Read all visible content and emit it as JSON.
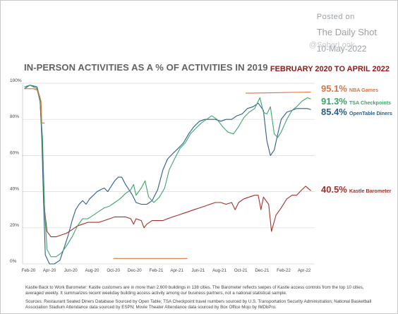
{
  "watermark": {
    "posted": "Posted on",
    "source": "The Daily Shot",
    "date": "10-May-2022",
    "handle": "@SoberLook"
  },
  "header": {
    "title": "IN-PERSON ACTIVITIES AS A % OF ACTIVITIES IN 2019",
    "subtitle": "FEBRUARY 2020 TO APRIL 2022"
  },
  "footer": {
    "note": "Kastle Back to Work Barometer: Kastle customers are in more than 2,600 buildings in 138 cities. The Barometer reflects swipes of Kastle access controls from the top 10 cities, averaged weekly. It summarizes recent weekday building access activity among our business partners, not a national statistical sample.",
    "sources": "Sources: Restaurant Seated Diners Database Sourced by Open Table; TSA Checkpoint travel numbers sourced by U.S. Transportation Security Administration; National Basketball Association Stadium Attendance data sourced by ESPN; Movie Theater Attendance data sourced by Box Office Mojo by IMDbPro."
  },
  "colors": {
    "nba": "#d9743e",
    "tsa": "#3ea36a",
    "opentable": "#2f5d85",
    "kastle": "#a2302a",
    "grid": "#d9d9d9",
    "axis_text": "#444444"
  },
  "chart_data": {
    "type": "line",
    "title": "IN-PERSON ACTIVITIES AS A % OF ACTIVITIES IN 2019",
    "subtitle": "FEBRUARY 2020 TO APRIL 2022",
    "xlabel": "",
    "ylabel": "",
    "xlim": [
      "2020-01-15",
      "2022-05-01"
    ],
    "ylim": [
      0,
      100
    ],
    "grid": true,
    "x_tick_labels": [
      "Feb-20",
      "Apr-20",
      "Jun-20",
      "Aug-20",
      "Oct-20",
      "Dec-20",
      "Feb-21",
      "Apr-21",
      "Jun-21",
      "Aug-21",
      "Oct-21",
      "Dec-21",
      "Feb-22",
      "Apr-22"
    ],
    "x_ticks": [
      "2020-02-01",
      "2020-04-01",
      "2020-06-01",
      "2020-08-01",
      "2020-10-01",
      "2020-12-01",
      "2021-02-01",
      "2021-04-01",
      "2021-06-01",
      "2021-08-01",
      "2021-10-01",
      "2021-12-01",
      "2022-02-01",
      "2022-04-01"
    ],
    "y_ticks": [
      0,
      20,
      40,
      60,
      80,
      100
    ],
    "y_tick_labels": [
      "0%",
      "20%",
      "40%",
      "60%",
      "80%",
      "100%"
    ],
    "series": [
      {
        "name": "NBA Games",
        "last_value_label": "95.1%",
        "color": "#d9743e",
        "segments": [
          [
            [
              "2020-01-20",
              97
            ],
            [
              "2020-02-15",
              97
            ],
            [
              "2020-02-28",
              96
            ],
            [
              "2020-03-08",
              90
            ],
            [
              "2020-03-10",
              78
            ],
            [
              "2020-03-18",
              78
            ]
          ],
          [
            [
              "2020-10-01",
              3
            ],
            [
              "2021-05-01",
              3
            ]
          ],
          [
            [
              "2021-10-15",
              94.5
            ],
            [
              "2022-04-20",
              95.1
            ]
          ]
        ]
      },
      {
        "name": "TSA Checkpoints",
        "last_value_label": "91.3%",
        "color": "#3ea36a",
        "points": [
          [
            "2020-01-20",
            98
          ],
          [
            "2020-02-05",
            99
          ],
          [
            "2020-02-25",
            97
          ],
          [
            "2020-03-05",
            90
          ],
          [
            "2020-03-12",
            70
          ],
          [
            "2020-03-18",
            30
          ],
          [
            "2020-03-25",
            8
          ],
          [
            "2020-04-05",
            4
          ],
          [
            "2020-04-20",
            4
          ],
          [
            "2020-05-05",
            6
          ],
          [
            "2020-05-20",
            10
          ],
          [
            "2020-06-05",
            15
          ],
          [
            "2020-06-20",
            21
          ],
          [
            "2020-07-05",
            25
          ],
          [
            "2020-07-20",
            25
          ],
          [
            "2020-08-05",
            27
          ],
          [
            "2020-08-20",
            29
          ],
          [
            "2020-09-05",
            31
          ],
          [
            "2020-09-20",
            32
          ],
          [
            "2020-10-05",
            34
          ],
          [
            "2020-10-20",
            36
          ],
          [
            "2020-11-05",
            39
          ],
          [
            "2020-11-20",
            41
          ],
          [
            "2020-11-28",
            44
          ],
          [
            "2020-12-05",
            38
          ],
          [
            "2020-12-20",
            42
          ],
          [
            "2020-12-31",
            46
          ],
          [
            "2021-01-10",
            37
          ],
          [
            "2021-01-25",
            34
          ],
          [
            "2021-02-10",
            37
          ],
          [
            "2021-02-25",
            42
          ],
          [
            "2021-03-10",
            52
          ],
          [
            "2021-03-25",
            58
          ],
          [
            "2021-04-10",
            64
          ],
          [
            "2021-04-25",
            67
          ],
          [
            "2021-05-10",
            72
          ],
          [
            "2021-05-25",
            75
          ],
          [
            "2021-06-10",
            78
          ],
          [
            "2021-06-25",
            80
          ],
          [
            "2021-07-10",
            82
          ],
          [
            "2021-07-25",
            80
          ],
          [
            "2021-08-10",
            76
          ],
          [
            "2021-08-25",
            73
          ],
          [
            "2021-09-10",
            72
          ],
          [
            "2021-09-25",
            76
          ],
          [
            "2021-10-10",
            81
          ],
          [
            "2021-10-25",
            84
          ],
          [
            "2021-11-10",
            86
          ],
          [
            "2021-11-25",
            92
          ],
          [
            "2021-12-05",
            84
          ],
          [
            "2021-12-15",
            83
          ],
          [
            "2021-12-25",
            87
          ],
          [
            "2022-01-05",
            72
          ],
          [
            "2022-01-15",
            70
          ],
          [
            "2022-01-25",
            73
          ],
          [
            "2022-02-10",
            80
          ],
          [
            "2022-02-25",
            85
          ],
          [
            "2022-03-10",
            87
          ],
          [
            "2022-03-25",
            90
          ],
          [
            "2022-04-10",
            92
          ],
          [
            "2022-04-20",
            91.3
          ]
        ]
      },
      {
        "name": "OpenTable Diners",
        "last_value_label": "85.4%",
        "color": "#2f5d85",
        "points": [
          [
            "2020-01-20",
            97
          ],
          [
            "2020-02-05",
            99
          ],
          [
            "2020-02-25",
            98
          ],
          [
            "2020-03-05",
            92
          ],
          [
            "2020-03-10",
            70
          ],
          [
            "2020-03-15",
            35
          ],
          [
            "2020-03-20",
            5
          ],
          [
            "2020-04-01",
            0
          ],
          [
            "2020-04-15",
            0
          ],
          [
            "2020-05-01",
            2
          ],
          [
            "2020-05-15",
            10
          ],
          [
            "2020-05-25",
            16
          ],
          [
            "2020-06-05",
            24
          ],
          [
            "2020-06-15",
            30
          ],
          [
            "2020-06-25",
            33
          ],
          [
            "2020-07-05",
            35
          ],
          [
            "2020-07-15",
            33
          ],
          [
            "2020-07-25",
            36
          ],
          [
            "2020-08-05",
            38
          ],
          [
            "2020-08-15",
            40
          ],
          [
            "2020-08-25",
            41
          ],
          [
            "2020-09-05",
            42
          ],
          [
            "2020-09-15",
            40
          ],
          [
            "2020-09-25",
            43
          ],
          [
            "2020-10-05",
            46
          ],
          [
            "2020-10-15",
            48
          ],
          [
            "2020-10-25",
            48
          ],
          [
            "2020-11-05",
            44
          ],
          [
            "2020-11-15",
            41
          ],
          [
            "2020-11-25",
            38
          ],
          [
            "2020-12-05",
            34
          ],
          [
            "2020-12-20",
            33
          ],
          [
            "2021-01-05",
            33
          ],
          [
            "2021-01-20",
            35
          ],
          [
            "2021-02-05",
            41
          ],
          [
            "2021-02-20",
            52
          ],
          [
            "2021-03-05",
            58
          ],
          [
            "2021-03-20",
            61
          ],
          [
            "2021-04-05",
            64
          ],
          [
            "2021-04-20",
            67
          ],
          [
            "2021-05-05",
            72
          ],
          [
            "2021-05-20",
            76
          ],
          [
            "2021-06-05",
            79
          ],
          [
            "2021-06-20",
            80
          ],
          [
            "2021-07-05",
            80
          ],
          [
            "2021-07-20",
            80
          ],
          [
            "2021-08-05",
            79
          ],
          [
            "2021-08-20",
            80
          ],
          [
            "2021-09-05",
            80
          ],
          [
            "2021-09-20",
            82
          ],
          [
            "2021-10-05",
            83
          ],
          [
            "2021-10-20",
            86
          ],
          [
            "2021-11-05",
            87
          ],
          [
            "2021-11-20",
            89
          ],
          [
            "2021-12-05",
            85
          ],
          [
            "2021-12-15",
            68
          ],
          [
            "2021-12-25",
            60
          ],
          [
            "2022-01-05",
            63
          ],
          [
            "2022-01-15",
            72
          ],
          [
            "2022-01-25",
            80
          ],
          [
            "2022-02-10",
            84
          ],
          [
            "2022-02-25",
            85
          ],
          [
            "2022-03-10",
            86
          ],
          [
            "2022-03-25",
            86
          ],
          [
            "2022-04-10",
            86
          ],
          [
            "2022-04-20",
            85.4
          ]
        ]
      },
      {
        "name": "Kastle Barometer",
        "last_value_label": "40.5%",
        "color": "#a2302a",
        "points": [
          [
            "2020-01-20",
            97
          ],
          [
            "2020-02-05",
            99
          ],
          [
            "2020-02-25",
            98
          ],
          [
            "2020-03-05",
            90
          ],
          [
            "2020-03-12",
            65
          ],
          [
            "2020-03-18",
            30
          ],
          [
            "2020-03-25",
            18
          ],
          [
            "2020-04-05",
            15
          ],
          [
            "2020-04-20",
            15
          ],
          [
            "2020-05-05",
            16
          ],
          [
            "2020-05-20",
            17
          ],
          [
            "2020-06-05",
            19
          ],
          [
            "2020-06-20",
            21
          ],
          [
            "2020-07-05",
            22
          ],
          [
            "2020-07-20",
            23
          ],
          [
            "2020-08-05",
            23
          ],
          [
            "2020-08-20",
            23
          ],
          [
            "2020-09-05",
            24
          ],
          [
            "2020-09-20",
            25
          ],
          [
            "2020-10-05",
            26
          ],
          [
            "2020-10-20",
            26
          ],
          [
            "2020-11-05",
            26
          ],
          [
            "2020-11-20",
            25
          ],
          [
            "2020-11-28",
            22
          ],
          [
            "2020-12-05",
            25
          ],
          [
            "2020-12-20",
            24
          ],
          [
            "2020-12-28",
            20
          ],
          [
            "2021-01-05",
            22
          ],
          [
            "2021-01-20",
            24
          ],
          [
            "2021-02-05",
            24
          ],
          [
            "2021-02-20",
            24
          ],
          [
            "2021-03-05",
            25
          ],
          [
            "2021-03-20",
            26
          ],
          [
            "2021-04-05",
            27
          ],
          [
            "2021-04-20",
            28
          ],
          [
            "2021-05-05",
            29
          ],
          [
            "2021-05-20",
            30
          ],
          [
            "2021-06-05",
            31
          ],
          [
            "2021-06-20",
            32
          ],
          [
            "2021-07-05",
            33
          ],
          [
            "2021-07-20",
            34
          ],
          [
            "2021-08-05",
            34
          ],
          [
            "2021-08-20",
            33
          ],
          [
            "2021-09-05",
            34
          ],
          [
            "2021-09-15",
            30
          ],
          [
            "2021-09-25",
            34
          ],
          [
            "2021-10-10",
            36
          ],
          [
            "2021-10-25",
            37
          ],
          [
            "2021-11-10",
            38
          ],
          [
            "2021-11-20",
            38
          ],
          [
            "2021-11-28",
            30
          ],
          [
            "2021-12-05",
            37
          ],
          [
            "2021-12-20",
            33
          ],
          [
            "2021-12-28",
            18
          ],
          [
            "2022-01-10",
            27
          ],
          [
            "2022-01-25",
            31
          ],
          [
            "2022-02-10",
            36
          ],
          [
            "2022-02-25",
            38
          ],
          [
            "2022-03-10",
            38
          ],
          [
            "2022-03-25",
            41
          ],
          [
            "2022-04-05",
            43
          ],
          [
            "2022-04-20",
            40.5
          ]
        ]
      }
    ]
  }
}
